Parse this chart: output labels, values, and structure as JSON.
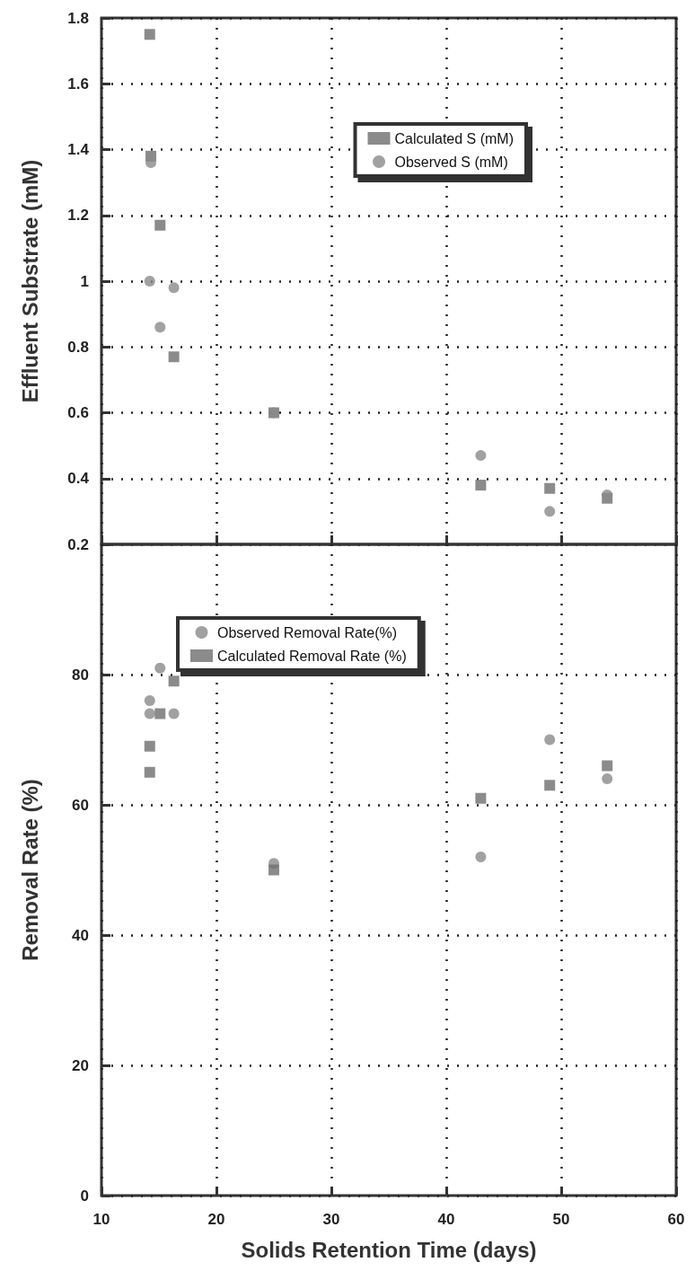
{
  "chart_data": [
    {
      "type": "scatter",
      "ylabel": "Effluent Substrate (mM)",
      "xlim": [
        10,
        60
      ],
      "xticks": [
        10,
        20,
        30,
        40,
        50,
        60
      ],
      "ylim": [
        0.2,
        1.8
      ],
      "yticks": [
        0.2,
        0.4,
        0.6,
        0.8,
        1,
        1.2,
        1.4,
        1.6,
        1.8
      ],
      "tick_labels": "y",
      "grid": true,
      "legend": "top right",
      "series": [
        {
          "name": "Calculated S (mM)",
          "color": "#6e6e6e",
          "marker": "square",
          "x": [
            14.2,
            14.3,
            15.1,
            16.3,
            25,
            43,
            49,
            54
          ],
          "values": [
            1.75,
            1.38,
            1.17,
            0.77,
            0.6,
            0.38,
            0.37,
            0.34
          ]
        },
        {
          "name": "Observed S (mM)",
          "color": "#8a8a8a",
          "marker": "circle",
          "x": [
            14.3,
            14.2,
            15.1,
            16.3,
            25,
            43,
            49,
            54
          ],
          "values": [
            1.36,
            1.0,
            0.86,
            0.98,
            0.6,
            0.47,
            0.3,
            0.35
          ]
        }
      ]
    },
    {
      "type": "scatter",
      "xlabel": "Solids Retention Time (days)",
      "ylabel": "Removal Rate (%)",
      "xlim": [
        10,
        60
      ],
      "xticks": [
        10,
        20,
        30,
        40,
        50,
        60
      ],
      "ylim": [
        0,
        100
      ],
      "yticks": [
        0,
        20,
        40,
        60,
        80
      ],
      "grid": true,
      "legend": "top",
      "series": [
        {
          "name": "Observed Removal Rate(%)",
          "color": "#8a8a8a",
          "marker": "circle",
          "x": [
            14.2,
            14.2,
            15.1,
            16.3,
            25,
            43,
            49,
            54
          ],
          "values": [
            76,
            74,
            81,
            74,
            51,
            52,
            70,
            64
          ]
        },
        {
          "name": "Calculated Removal Rate (%)",
          "color": "#6e6e6e",
          "marker": "square",
          "x": [
            14.2,
            14.2,
            15.1,
            16.3,
            25,
            43,
            49,
            54
          ],
          "values": [
            69,
            65,
            74,
            79,
            50,
            61,
            63,
            66
          ]
        }
      ]
    }
  ]
}
